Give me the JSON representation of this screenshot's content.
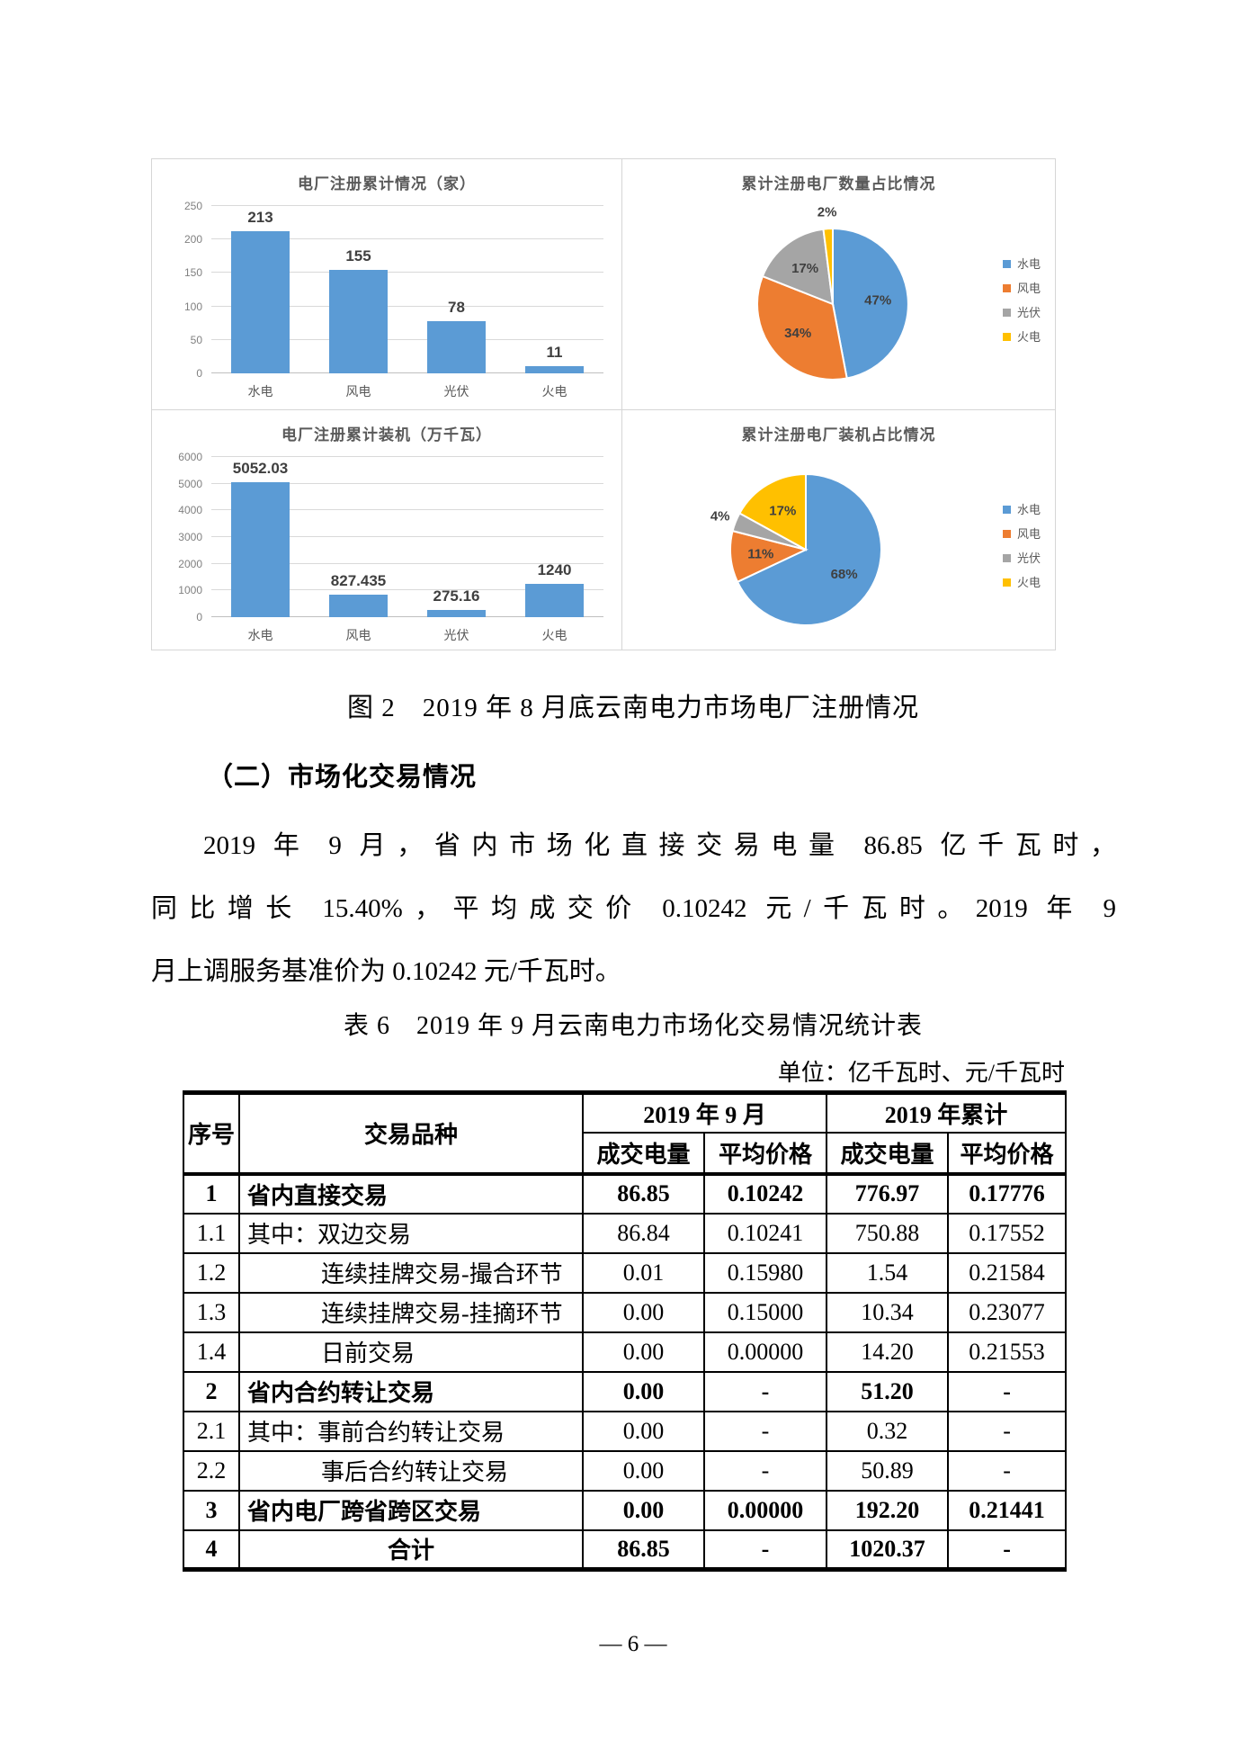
{
  "page": {
    "footer": "— 6 —"
  },
  "figure": {
    "caption": "图 2　2019 年 8 月底云南电力市场电厂注册情况"
  },
  "section": {
    "heading": "（二）市场化交易情况"
  },
  "paragraph": {
    "lines": [
      "2019 年 9 月，省内市场化直接交易电量 86.85 亿千瓦时，",
      "同比增长 15.40%，平均成交价 0.10242 元/千瓦时。2019 年 9",
      "月上调服务基准价为 0.10242 元/千瓦时。"
    ]
  },
  "table": {
    "caption": "表 6　2019 年 9 月云南电力市场化交易情况统计表",
    "unit_note": "单位：亿千瓦时、元/千瓦时",
    "header": {
      "col_seq": "序号",
      "col_type": "交易品种",
      "group_month": "2019 年 9 月",
      "group_cumulative": "2019 年累计",
      "sub": [
        "成交电量",
        "平均价格",
        "成交电量",
        "平均价格"
      ]
    },
    "rows": [
      {
        "seq": "1",
        "name": "省内直接交易",
        "bold": true,
        "indent": 0,
        "align": "left",
        "values": [
          "86.85",
          "0.10242",
          "776.97",
          "0.17776"
        ]
      },
      {
        "seq": "1.1",
        "name": "其中：双边交易",
        "bold": false,
        "indent": 0,
        "align": "left",
        "values": [
          "86.84",
          "0.10241",
          "750.88",
          "0.17552"
        ]
      },
      {
        "seq": "1.2",
        "name": "连续挂牌交易-撮合环节",
        "bold": false,
        "indent": 1,
        "align": "left",
        "values": [
          "0.01",
          "0.15980",
          "1.54",
          "0.21584"
        ]
      },
      {
        "seq": "1.3",
        "name": "连续挂牌交易-挂摘环节",
        "bold": false,
        "indent": 1,
        "align": "left",
        "values": [
          "0.00",
          "0.15000",
          "10.34",
          "0.23077"
        ]
      },
      {
        "seq": "1.4",
        "name": "日前交易",
        "bold": false,
        "indent": 1,
        "align": "left",
        "values": [
          "0.00",
          "0.00000",
          "14.20",
          "0.21553"
        ]
      },
      {
        "seq": "2",
        "name": "省内合约转让交易",
        "bold": true,
        "indent": 0,
        "align": "left",
        "values": [
          "0.00",
          "-",
          "51.20",
          "-"
        ]
      },
      {
        "seq": "2.1",
        "name": "其中：事前合约转让交易",
        "bold": false,
        "indent": 0,
        "align": "left",
        "values": [
          "0.00",
          "-",
          "0.32",
          "-"
        ]
      },
      {
        "seq": "2.2",
        "name": "事后合约转让交易",
        "bold": false,
        "indent": 1,
        "align": "left",
        "values": [
          "0.00",
          "-",
          "50.89",
          "-"
        ]
      },
      {
        "seq": "3",
        "name": "省内电厂跨省跨区交易",
        "bold": true,
        "indent": 0,
        "align": "left",
        "values": [
          "0.00",
          "0.00000",
          "192.20",
          "0.21441"
        ]
      },
      {
        "seq": "4",
        "name": "合计",
        "bold": true,
        "indent": 0,
        "align": "center",
        "values": [
          "86.85",
          "-",
          "1020.37",
          "-"
        ]
      }
    ]
  },
  "chart_data": [
    {
      "id": "bar-registered-plant-count",
      "type": "bar",
      "title": "电厂注册累计情况（家）",
      "categories": [
        "水电",
        "风电",
        "光伏",
        "火电"
      ],
      "values": [
        213,
        155,
        78,
        11
      ],
      "xlabel": "",
      "ylabel": "",
      "ylim": [
        0,
        250
      ],
      "ytick_step": 50,
      "bar_color": "#5b9bd5",
      "grid": true,
      "legend_position": "none"
    },
    {
      "id": "pie-registered-plant-count-share",
      "type": "pie",
      "title": "累计注册电厂数量占比情况",
      "labels": [
        "水电",
        "风电",
        "光伏",
        "火电"
      ],
      "values": [
        47,
        34,
        17,
        2
      ],
      "unit": "%",
      "colors": [
        "#5b9bd5",
        "#ed7d31",
        "#a5a5a5",
        "#ffc000"
      ],
      "legend_position": "right",
      "start_angle_deg": 0,
      "direction": "clockwise"
    },
    {
      "id": "bar-registered-capacity",
      "type": "bar",
      "title": "电厂注册累计装机（万千瓦）",
      "categories": [
        "水电",
        "风电",
        "光伏",
        "火电"
      ],
      "values": [
        5052.03,
        827.435,
        275.16,
        1240
      ],
      "xlabel": "",
      "ylabel": "",
      "ylim": [
        0,
        6000
      ],
      "ytick_step": 1000,
      "bar_color": "#5b9bd5",
      "grid": true,
      "legend_position": "none"
    },
    {
      "id": "pie-registered-capacity-share",
      "type": "pie",
      "title": "累计注册电厂装机占比情况",
      "labels": [
        "水电",
        "风电",
        "光伏",
        "火电"
      ],
      "values": [
        68,
        11,
        4,
        17
      ],
      "unit": "%",
      "colors": [
        "#5b9bd5",
        "#ed7d31",
        "#a5a5a5",
        "#ffc000"
      ],
      "legend_position": "right",
      "start_angle_deg": 0,
      "direction": "clockwise"
    }
  ]
}
